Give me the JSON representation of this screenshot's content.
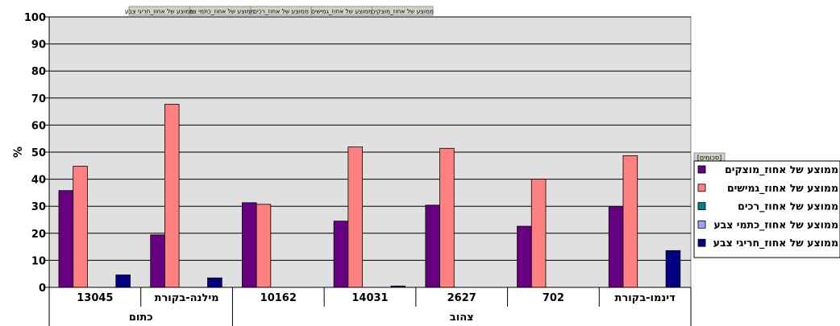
{
  "chart_data": {
    "type": "bar",
    "ylabel": "%",
    "ylim": [
      0,
      100
    ],
    "yticks": [
      0,
      10,
      20,
      30,
      40,
      50,
      60,
      70,
      80,
      90,
      100
    ],
    "grid": true,
    "legend_position": "right",
    "legend_title": "[סכומים]",
    "field_buttons": [
      "ממוצע של אחוז_מוצקים",
      "ממוצע של אחוז_גמישים",
      "ממוצע של אחוז_רכים",
      "ממוצע של אחוז_כתמי צבע",
      "ממוצע של אחוז_חריגי צבע"
    ],
    "groups": [
      {
        "label": "כתום",
        "categories": [
          "13045",
          "מילנה-בקורת"
        ]
      },
      {
        "label": "צהוב",
        "categories": [
          "10162",
          "14031",
          "2627",
          "702",
          "דינמו-בקורת"
        ]
      }
    ],
    "categories": [
      "13045",
      "מילנה-בקורת",
      "10162",
      "14031",
      "2627",
      "702",
      "דינמו-בקורת"
    ],
    "series": [
      {
        "name": "ממוצע של אחוז_מוצקים",
        "color": "#660080",
        "values": [
          35.8,
          19.4,
          31.3,
          24.5,
          30.4,
          22.6,
          29.9
        ]
      },
      {
        "name": "ממוצע של אחוז_גמישים",
        "color": "#ff8080",
        "values": [
          44.8,
          67.7,
          30.7,
          51.9,
          51.4,
          40.0,
          48.7
        ]
      },
      {
        "name": "ממוצע של אחוז_רכים",
        "color": "#008080",
        "values": [
          0,
          0,
          0,
          0,
          0,
          0,
          0
        ]
      },
      {
        "name": "ממוצע של אחוז_כתמי צבע",
        "color": "#a0a0ff",
        "values": [
          0,
          0,
          0,
          0,
          0,
          0,
          0
        ]
      },
      {
        "name": "ממוצע של אחוז_חריגי צבע",
        "color": "#000080",
        "values": [
          4.6,
          3.5,
          0,
          0.5,
          0,
          0,
          13.6
        ]
      }
    ]
  }
}
